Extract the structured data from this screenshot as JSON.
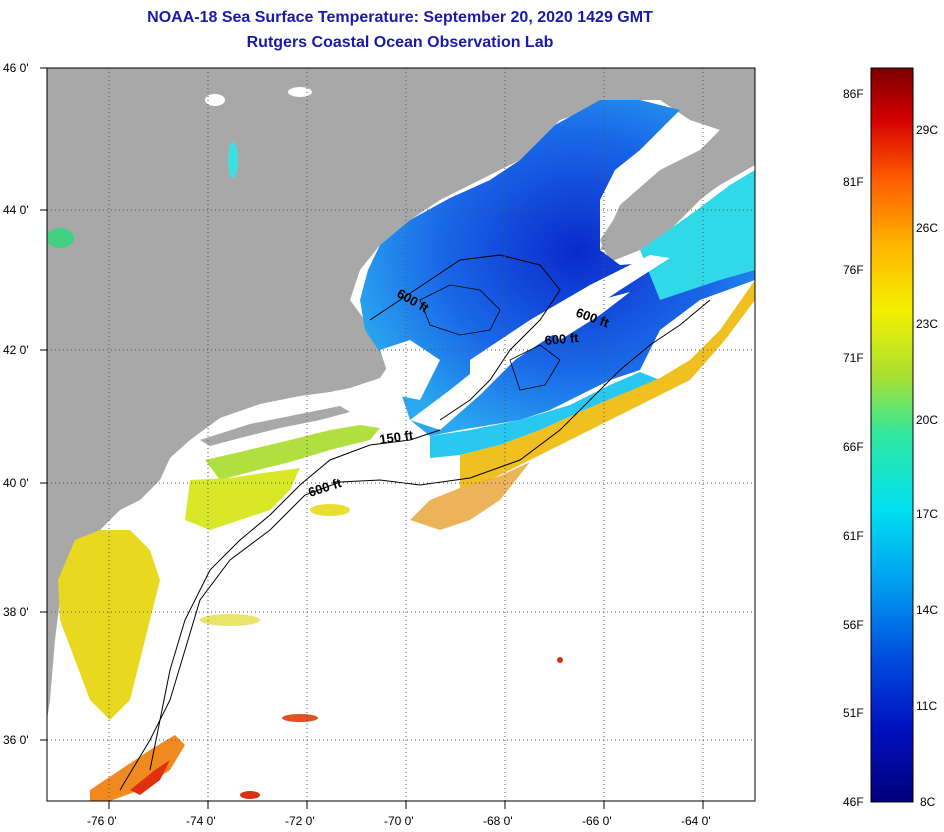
{
  "header": {
    "title": "NOAA-18 Sea Surface Temperature:  September 20, 2020 1429 GMT",
    "subtitle": "Rutgers Coastal Ocean Observation Lab"
  },
  "map": {
    "lat_labels": [
      "46 0'",
      "44 0'",
      "42 0'",
      "40 0'",
      "38 0'",
      "36 0'"
    ],
    "lon_labels": [
      "-76 0'",
      "-74 0'",
      "-72 0'",
      "-70 0'",
      "-68 0'",
      "-66 0'",
      "-64 0'"
    ],
    "contour_labels": [
      "600 ft",
      "600 ft",
      "600 ft",
      "150 ft",
      "600 ft"
    ],
    "colors": {
      "land": "#a8a8a8",
      "grid": "#555555",
      "no_data": "#ffffff"
    }
  },
  "colorbar": {
    "f_labels": [
      "86F",
      "81F",
      "76F",
      "71F",
      "66F",
      "61F",
      "56F",
      "51F",
      "46F"
    ],
    "c_labels": [
      "29C",
      "26C",
      "23C",
      "20C",
      "17C",
      "14C",
      "11C",
      "8C"
    ],
    "colors": [
      "#7a0000",
      "#d40000",
      "#ff5a00",
      "#ffb400",
      "#f5f000",
      "#a8e030",
      "#30e8a0",
      "#00e0f0",
      "#00a0f0",
      "#0050e0",
      "#0010c0",
      "#00007a"
    ]
  }
}
